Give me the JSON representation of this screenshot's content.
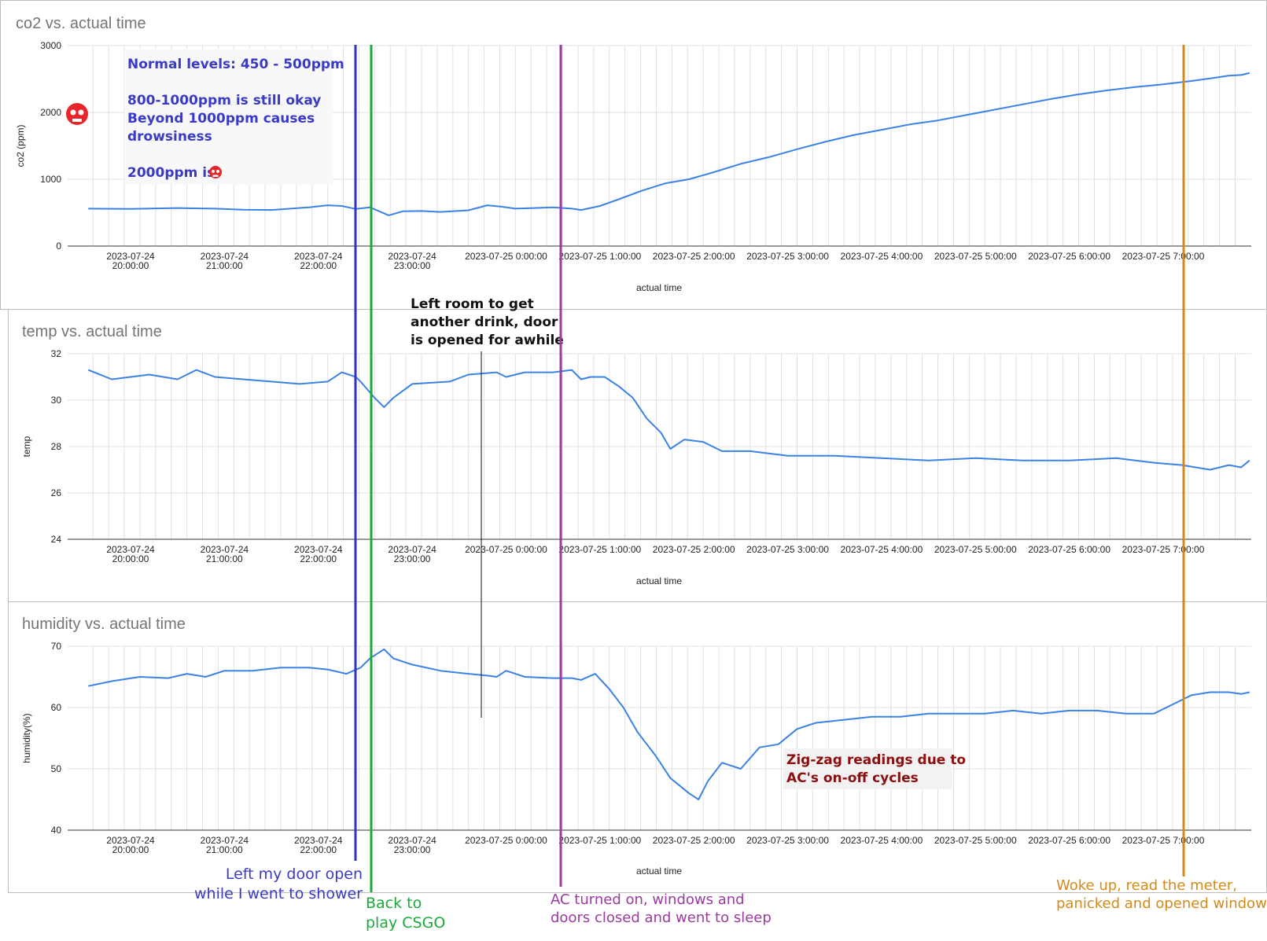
{
  "colors": {
    "line": "#3b82e6",
    "grid": "#e0e0e0",
    "shower": "#3333bb",
    "csgo": "#1aaa3a",
    "sleep": "#9b3aa0",
    "woke": "#d48a1a",
    "zigzag": "#8b0f0f",
    "skull": "#e8262a"
  },
  "x_tick_times": [
    "2023-07-24 20:00:00",
    "2023-07-24 21:00:00",
    "2023-07-24 22:00:00",
    "2023-07-24 23:00:00",
    "2023-07-25 0:00:00",
    "2023-07-25 1:00:00",
    "2023-07-25 2:00:00",
    "2023-07-25 3:00:00",
    "2023-07-25 4:00:00",
    "2023-07-25 5:00:00",
    "2023-07-25 6:00:00",
    "2023-07-25 7:00:00"
  ],
  "chart_data": [
    {
      "type": "line",
      "title": "co2 vs. actual time",
      "xlabel": "actual time",
      "ylabel": "co2 (ppm)",
      "ylim": [
        0,
        3000
      ],
      "yticks": [
        0,
        1000,
        2000,
        3000
      ],
      "x_hours_range": [
        19.55,
        31.92
      ],
      "series": [
        {
          "name": "co2",
          "points": [
            [
              19.55,
              560
            ],
            [
              20.0,
              555
            ],
            [
              20.5,
              570
            ],
            [
              20.9,
              560
            ],
            [
              21.2,
              545
            ],
            [
              21.5,
              540
            ],
            [
              21.9,
              580
            ],
            [
              22.1,
              610
            ],
            [
              22.25,
              600
            ],
            [
              22.4,
              555
            ],
            [
              22.55,
              580
            ],
            [
              22.65,
              520
            ],
            [
              22.75,
              460
            ],
            [
              22.9,
              520
            ],
            [
              23.1,
              525
            ],
            [
              23.3,
              510
            ],
            [
              23.6,
              535
            ],
            [
              23.8,
              610
            ],
            [
              23.95,
              590
            ],
            [
              24.1,
              560
            ],
            [
              24.3,
              570
            ],
            [
              24.5,
              580
            ],
            [
              24.7,
              560
            ],
            [
              24.8,
              540
            ],
            [
              25.0,
              600
            ],
            [
              25.2,
              700
            ],
            [
              25.45,
              830
            ],
            [
              25.7,
              940
            ],
            [
              25.95,
              1000
            ],
            [
              26.2,
              1100
            ],
            [
              26.5,
              1230
            ],
            [
              26.8,
              1330
            ],
            [
              27.1,
              1450
            ],
            [
              27.4,
              1560
            ],
            [
              27.7,
              1660
            ],
            [
              28.0,
              1740
            ],
            [
              28.3,
              1820
            ],
            [
              28.6,
              1880
            ],
            [
              28.9,
              1960
            ],
            [
              29.2,
              2040
            ],
            [
              29.5,
              2120
            ],
            [
              29.8,
              2200
            ],
            [
              30.1,
              2270
            ],
            [
              30.4,
              2330
            ],
            [
              30.7,
              2380
            ],
            [
              31.0,
              2420
            ],
            [
              31.3,
              2470
            ],
            [
              31.5,
              2510
            ],
            [
              31.7,
              2550
            ],
            [
              31.83,
              2560
            ],
            [
              31.92,
              2590
            ]
          ]
        }
      ]
    },
    {
      "type": "line",
      "title": "temp vs. actual time",
      "xlabel": "actual time",
      "ylabel": "temp",
      "ylim": [
        24,
        32
      ],
      "yticks": [
        24,
        26,
        28,
        30,
        32
      ],
      "x_hours_range": [
        19.55,
        31.92
      ],
      "series": [
        {
          "name": "temp",
          "points": [
            [
              19.55,
              31.3
            ],
            [
              19.8,
              30.9
            ],
            [
              20.2,
              31.1
            ],
            [
              20.5,
              30.9
            ],
            [
              20.7,
              31.3
            ],
            [
              20.9,
              31.0
            ],
            [
              21.2,
              30.9
            ],
            [
              21.5,
              30.8
            ],
            [
              21.8,
              30.7
            ],
            [
              22.1,
              30.8
            ],
            [
              22.25,
              31.2
            ],
            [
              22.4,
              31.0
            ],
            [
              22.45,
              30.8
            ],
            [
              22.6,
              30.1
            ],
            [
              22.7,
              29.7
            ],
            [
              22.8,
              30.1
            ],
            [
              23.0,
              30.7
            ],
            [
              23.4,
              30.8
            ],
            [
              23.6,
              31.1
            ],
            [
              23.9,
              31.2
            ],
            [
              24.0,
              31.0
            ],
            [
              24.2,
              31.2
            ],
            [
              24.5,
              31.2
            ],
            [
              24.7,
              31.3
            ],
            [
              24.8,
              30.9
            ],
            [
              24.9,
              31.0
            ],
            [
              25.05,
              31.0
            ],
            [
              25.2,
              30.6
            ],
            [
              25.35,
              30.1
            ],
            [
              25.5,
              29.2
            ],
            [
              25.65,
              28.6
            ],
            [
              25.75,
              27.9
            ],
            [
              25.9,
              28.3
            ],
            [
              26.1,
              28.2
            ],
            [
              26.3,
              27.8
            ],
            [
              26.6,
              27.8
            ],
            [
              27.0,
              27.6
            ],
            [
              27.5,
              27.6
            ],
            [
              28.0,
              27.5
            ],
            [
              28.5,
              27.4
            ],
            [
              29.0,
              27.5
            ],
            [
              29.5,
              27.4
            ],
            [
              30.0,
              27.4
            ],
            [
              30.5,
              27.5
            ],
            [
              30.9,
              27.3
            ],
            [
              31.2,
              27.2
            ],
            [
              31.5,
              27.0
            ],
            [
              31.7,
              27.2
            ],
            [
              31.83,
              27.1
            ],
            [
              31.92,
              27.4
            ]
          ]
        }
      ]
    },
    {
      "type": "line",
      "title": "humidity vs. actual time",
      "xlabel": "actual time",
      "ylabel": "humidity(%)",
      "ylim": [
        40,
        70
      ],
      "yticks": [
        40,
        50,
        60,
        70
      ],
      "x_hours_range": [
        19.55,
        31.92
      ],
      "series": [
        {
          "name": "humidity",
          "points": [
            [
              19.55,
              63.5
            ],
            [
              19.8,
              64.3
            ],
            [
              20.1,
              65.0
            ],
            [
              20.4,
              64.8
            ],
            [
              20.6,
              65.5
            ],
            [
              20.8,
              65.0
            ],
            [
              21.0,
              66.0
            ],
            [
              21.3,
              66.0
            ],
            [
              21.6,
              66.5
            ],
            [
              21.9,
              66.5
            ],
            [
              22.1,
              66.2
            ],
            [
              22.3,
              65.5
            ],
            [
              22.45,
              66.5
            ],
            [
              22.55,
              68.0
            ],
            [
              22.7,
              69.5
            ],
            [
              22.8,
              68.0
            ],
            [
              23.0,
              67.0
            ],
            [
              23.3,
              66.0
            ],
            [
              23.6,
              65.5
            ],
            [
              23.8,
              65.2
            ],
            [
              23.9,
              65.0
            ],
            [
              24.0,
              66.0
            ],
            [
              24.2,
              65.0
            ],
            [
              24.5,
              64.8
            ],
            [
              24.7,
              64.8
            ],
            [
              24.8,
              64.5
            ],
            [
              24.95,
              65.5
            ],
            [
              25.1,
              63.0
            ],
            [
              25.25,
              60.0
            ],
            [
              25.4,
              56.0
            ],
            [
              25.6,
              52.0
            ],
            [
              25.75,
              48.5
            ],
            [
              25.95,
              46.0
            ],
            [
              26.05,
              45.0
            ],
            [
              26.15,
              48.0
            ],
            [
              26.3,
              51.0
            ],
            [
              26.5,
              50.0
            ],
            [
              26.7,
              53.5
            ],
            [
              26.9,
              54.0
            ],
            [
              27.1,
              56.5
            ],
            [
              27.3,
              57.5
            ],
            [
              27.6,
              58.0
            ],
            [
              27.9,
              58.5
            ],
            [
              28.2,
              58.5
            ],
            [
              28.5,
              59.0
            ],
            [
              28.8,
              59.0
            ],
            [
              29.1,
              59.0
            ],
            [
              29.4,
              59.5
            ],
            [
              29.7,
              59.0
            ],
            [
              30.0,
              59.5
            ],
            [
              30.3,
              59.5
            ],
            [
              30.6,
              59.0
            ],
            [
              30.9,
              59.0
            ],
            [
              31.1,
              60.5
            ],
            [
              31.3,
              62.0
            ],
            [
              31.5,
              62.5
            ],
            [
              31.7,
              62.5
            ],
            [
              31.83,
              62.2
            ],
            [
              31.92,
              62.5
            ]
          ]
        }
      ]
    }
  ],
  "annotations": {
    "co2_info_line1": "Normal levels: 450 - 500ppm",
    "co2_info_line2": "800-1000ppm is still okay",
    "co2_info_line3": "Beyond 1000ppm causes",
    "co2_info_line4": "drowsiness",
    "co2_info_line5": "2000ppm is",
    "drink_line1": "Left room to get",
    "drink_line2": "another drink, door",
    "drink_line3": "is opened for awhile",
    "zigzag_line1": "Zig-zag readings due to",
    "zigzag_line2": "AC's on-off cycles",
    "shower_line1": "Left my door open",
    "shower_line2": "while I went to shower",
    "csgo_line1": "Back to",
    "csgo_line2": "play CSGO",
    "sleep_line1": "AC turned on, windows and",
    "sleep_line2": "doors closed and went to sleep",
    "woke_line1": "Woke up, read the meter,",
    "woke_line2": "panicked and opened windows"
  }
}
